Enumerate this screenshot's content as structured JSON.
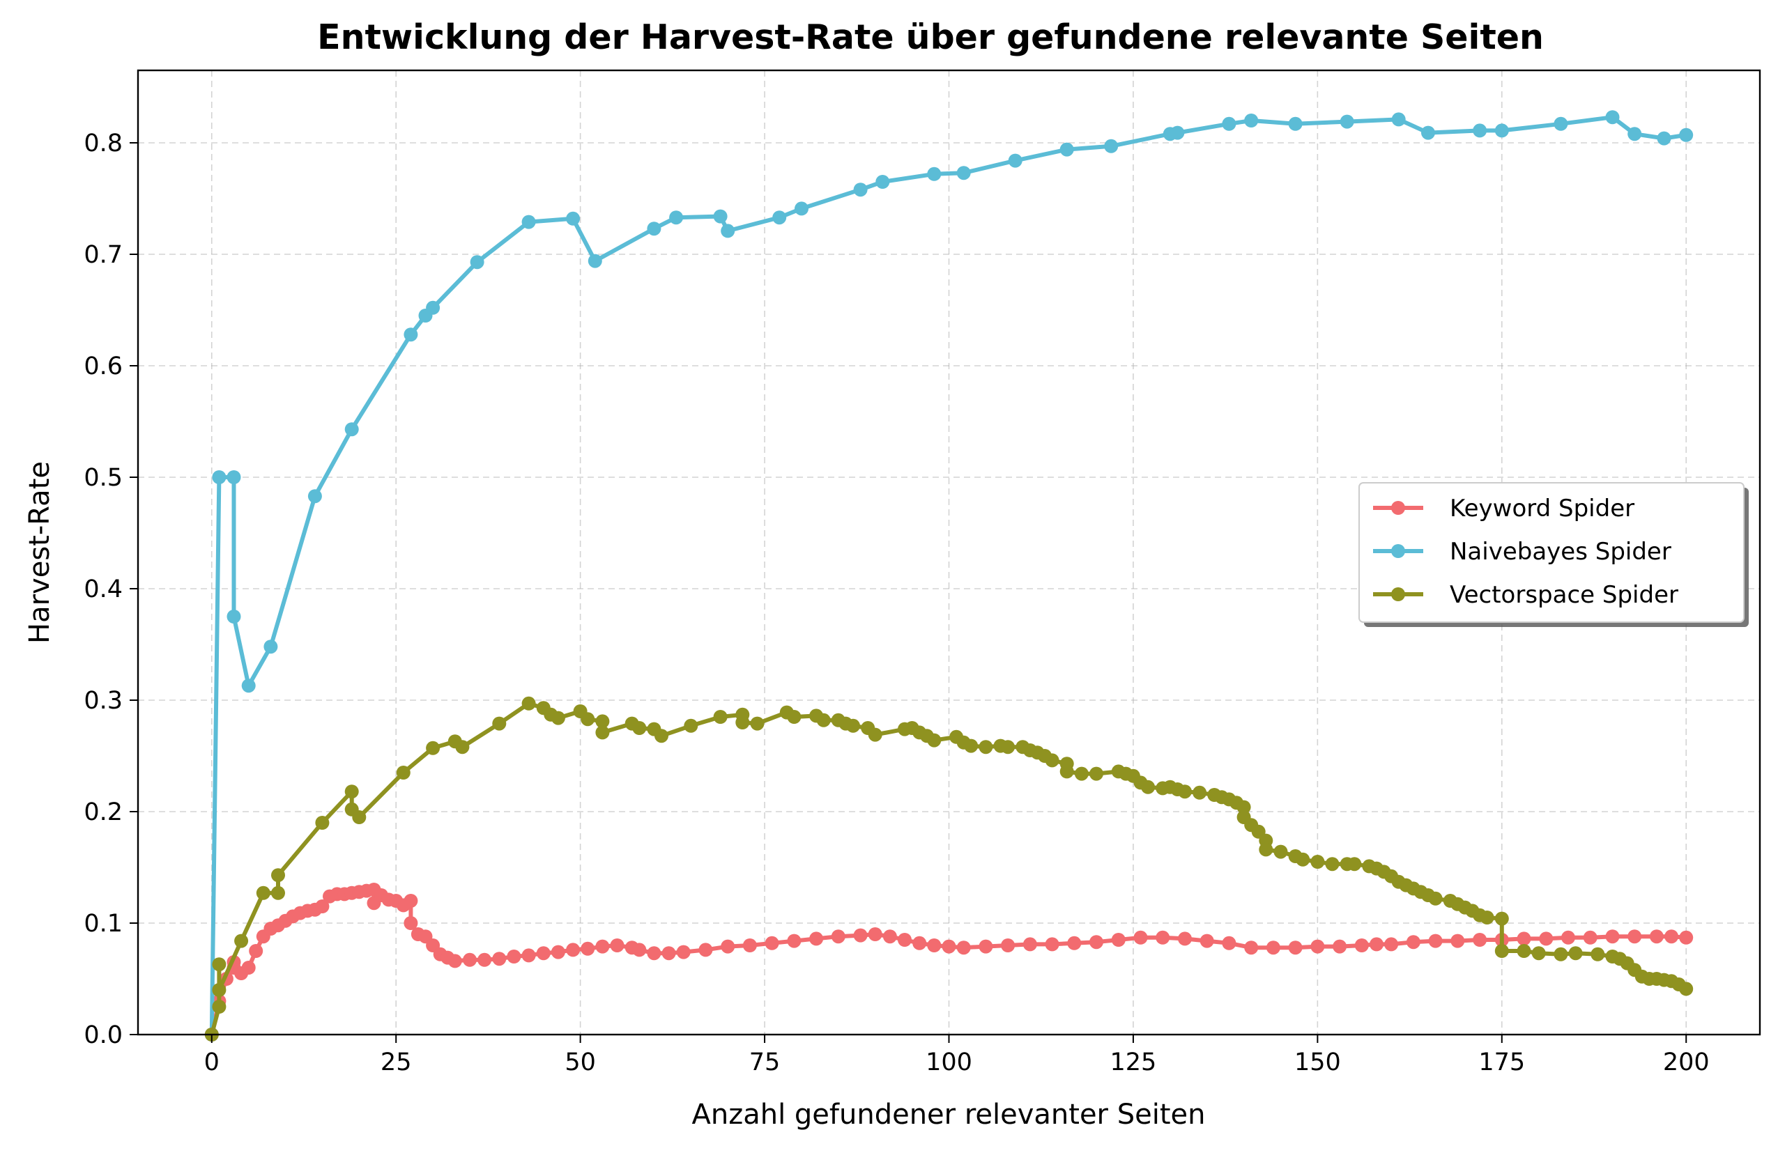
{
  "chart_data": {
    "type": "line",
    "title": "Entwicklung der Harvest-Rate über gefundene relevante Seiten",
    "xlabel": "Anzahl gefundener relevanter Seiten",
    "ylabel": "Harvest-Rate",
    "xlim": [
      -10,
      210
    ],
    "ylim": [
      0,
      0.865
    ],
    "xticks": [
      0,
      25,
      50,
      75,
      100,
      125,
      150,
      175,
      200
    ],
    "yticks": [
      0.0,
      0.1,
      0.2,
      0.3,
      0.4,
      0.5,
      0.6,
      0.7,
      0.8
    ],
    "xtick_labels": [
      "0",
      "25",
      "50",
      "75",
      "100",
      "125",
      "150",
      "175",
      "200"
    ],
    "ytick_labels": [
      "0.0",
      "0.1",
      "0.2",
      "0.3",
      "0.4",
      "0.5",
      "0.6",
      "0.7",
      "0.8"
    ],
    "grid": true,
    "legend_position": "center-right",
    "series": [
      {
        "name": "Keyword Spider",
        "color": "#f26b6f",
        "points": [
          [
            0,
            0
          ],
          [
            1,
            0.03
          ],
          [
            2,
            0.05
          ],
          [
            3,
            0.06
          ],
          [
            3,
            0.065
          ],
          [
            4,
            0.055
          ],
          [
            5,
            0.06
          ],
          [
            6,
            0.075
          ],
          [
            7,
            0.088
          ],
          [
            8,
            0.095
          ],
          [
            9,
            0.098
          ],
          [
            10,
            0.102
          ],
          [
            11,
            0.106
          ],
          [
            12,
            0.109
          ],
          [
            13,
            0.111
          ],
          [
            14,
            0.112
          ],
          [
            15,
            0.115
          ],
          [
            16,
            0.124
          ],
          [
            17,
            0.126
          ],
          [
            18,
            0.126
          ],
          [
            19,
            0.127
          ],
          [
            20,
            0.128
          ],
          [
            21,
            0.129
          ],
          [
            22,
            0.13
          ],
          [
            22,
            0.118
          ],
          [
            23,
            0.125
          ],
          [
            24,
            0.121
          ],
          [
            25,
            0.12
          ],
          [
            26,
            0.116
          ],
          [
            27,
            0.12
          ],
          [
            27,
            0.1
          ],
          [
            28,
            0.09
          ],
          [
            29,
            0.088
          ],
          [
            30,
            0.08
          ],
          [
            31,
            0.072
          ],
          [
            32,
            0.069
          ],
          [
            33,
            0.066
          ],
          [
            35,
            0.067
          ],
          [
            37,
            0.067
          ],
          [
            39,
            0.068
          ],
          [
            41,
            0.07
          ],
          [
            43,
            0.071
          ],
          [
            45,
            0.073
          ],
          [
            47,
            0.074
          ],
          [
            49,
            0.076
          ],
          [
            51,
            0.077
          ],
          [
            53,
            0.079
          ],
          [
            55,
            0.08
          ],
          [
            57,
            0.078
          ],
          [
            58,
            0.076
          ],
          [
            60,
            0.073
          ],
          [
            62,
            0.073
          ],
          [
            64,
            0.074
          ],
          [
            67,
            0.076
          ],
          [
            70,
            0.079
          ],
          [
            73,
            0.08
          ],
          [
            76,
            0.082
          ],
          [
            79,
            0.084
          ],
          [
            82,
            0.086
          ],
          [
            85,
            0.088
          ],
          [
            88,
            0.089
          ],
          [
            90,
            0.09
          ],
          [
            92,
            0.088
          ],
          [
            94,
            0.085
          ],
          [
            96,
            0.082
          ],
          [
            98,
            0.08
          ],
          [
            100,
            0.079
          ],
          [
            102,
            0.078
          ],
          [
            105,
            0.079
          ],
          [
            108,
            0.08
          ],
          [
            111,
            0.081
          ],
          [
            114,
            0.081
          ],
          [
            117,
            0.082
          ],
          [
            120,
            0.083
          ],
          [
            123,
            0.085
          ],
          [
            126,
            0.087
          ],
          [
            129,
            0.087
          ],
          [
            132,
            0.086
          ],
          [
            135,
            0.084
          ],
          [
            138,
            0.082
          ],
          [
            141,
            0.078
          ],
          [
            144,
            0.078
          ],
          [
            147,
            0.078
          ],
          [
            150,
            0.079
          ],
          [
            153,
            0.079
          ],
          [
            156,
            0.08
          ],
          [
            158,
            0.081
          ],
          [
            160,
            0.081
          ],
          [
            163,
            0.083
          ],
          [
            166,
            0.084
          ],
          [
            169,
            0.084
          ],
          [
            172,
            0.085
          ],
          [
            175,
            0.085
          ],
          [
            178,
            0.086
          ],
          [
            181,
            0.086
          ],
          [
            184,
            0.087
          ],
          [
            187,
            0.087
          ],
          [
            190,
            0.088
          ],
          [
            193,
            0.088
          ],
          [
            196,
            0.088
          ],
          [
            198,
            0.088
          ],
          [
            200,
            0.087
          ]
        ]
      },
      {
        "name": "Naivebayes Spider",
        "color": "#5bbcd6",
        "points": [
          [
            0,
            0
          ],
          [
            1,
            0.5
          ],
          [
            3,
            0.5
          ],
          [
            3,
            0.375
          ],
          [
            5,
            0.313
          ],
          [
            8,
            0.348
          ],
          [
            14,
            0.483
          ],
          [
            19,
            0.543
          ],
          [
            27,
            0.628
          ],
          [
            29,
            0.645
          ],
          [
            30,
            0.652
          ],
          [
            36,
            0.693
          ],
          [
            43,
            0.729
          ],
          [
            49,
            0.732
          ],
          [
            52,
            0.694
          ],
          [
            60,
            0.723
          ],
          [
            63,
            0.733
          ],
          [
            69,
            0.734
          ],
          [
            70,
            0.721
          ],
          [
            77,
            0.733
          ],
          [
            80,
            0.741
          ],
          [
            88,
            0.758
          ],
          [
            91,
            0.765
          ],
          [
            98,
            0.772
          ],
          [
            102,
            0.773
          ],
          [
            109,
            0.784
          ],
          [
            116,
            0.794
          ],
          [
            122,
            0.797
          ],
          [
            130,
            0.808
          ],
          [
            131,
            0.809
          ],
          [
            138,
            0.817
          ],
          [
            141,
            0.82
          ],
          [
            147,
            0.817
          ],
          [
            154,
            0.819
          ],
          [
            161,
            0.821
          ],
          [
            165,
            0.809
          ],
          [
            172,
            0.811
          ],
          [
            175,
            0.811
          ],
          [
            183,
            0.817
          ],
          [
            190,
            0.823
          ],
          [
            193,
            0.808
          ],
          [
            197,
            0.804
          ],
          [
            200,
            0.807
          ]
        ]
      },
      {
        "name": "Vectorspace Spider",
        "color": "#8f9220",
        "points": [
          [
            0,
            0
          ],
          [
            1,
            0.025
          ],
          [
            1,
            0.063
          ],
          [
            1,
            0.04
          ],
          [
            4,
            0.084
          ],
          [
            7,
            0.127
          ],
          [
            9,
            0.127
          ],
          [
            9,
            0.143
          ],
          [
            15,
            0.19
          ],
          [
            19,
            0.218
          ],
          [
            19,
            0.202
          ],
          [
            20,
            0.195
          ],
          [
            26,
            0.235
          ],
          [
            30,
            0.257
          ],
          [
            33,
            0.263
          ],
          [
            34,
            0.258
          ],
          [
            39,
            0.279
          ],
          [
            43,
            0.297
          ],
          [
            45,
            0.293
          ],
          [
            46,
            0.287
          ],
          [
            47,
            0.284
          ],
          [
            50,
            0.29
          ],
          [
            51,
            0.283
          ],
          [
            53,
            0.281
          ],
          [
            53,
            0.271
          ],
          [
            57,
            0.279
          ],
          [
            58,
            0.275
          ],
          [
            60,
            0.274
          ],
          [
            61,
            0.268
          ],
          [
            65,
            0.277
          ],
          [
            69,
            0.285
          ],
          [
            72,
            0.287
          ],
          [
            72,
            0.28
          ],
          [
            74,
            0.279
          ],
          [
            78,
            0.289
          ],
          [
            79,
            0.285
          ],
          [
            82,
            0.286
          ],
          [
            83,
            0.282
          ],
          [
            85,
            0.282
          ],
          [
            86,
            0.279
          ],
          [
            87,
            0.277
          ],
          [
            89,
            0.275
          ],
          [
            90,
            0.269
          ],
          [
            94,
            0.274
          ],
          [
            95,
            0.275
          ],
          [
            96,
            0.271
          ],
          [
            97,
            0.268
          ],
          [
            98,
            0.264
          ],
          [
            101,
            0.267
          ],
          [
            102,
            0.262
          ],
          [
            103,
            0.259
          ],
          [
            105,
            0.258
          ],
          [
            107,
            0.259
          ],
          [
            108,
            0.258
          ],
          [
            110,
            0.258
          ],
          [
            111,
            0.255
          ],
          [
            112,
            0.253
          ],
          [
            113,
            0.25
          ],
          [
            114,
            0.246
          ],
          [
            116,
            0.243
          ],
          [
            116,
            0.236
          ],
          [
            118,
            0.234
          ],
          [
            120,
            0.234
          ],
          [
            123,
            0.236
          ],
          [
            124,
            0.234
          ],
          [
            125,
            0.232
          ],
          [
            126,
            0.226
          ],
          [
            127,
            0.222
          ],
          [
            129,
            0.221
          ],
          [
            130,
            0.222
          ],
          [
            131,
            0.22
          ],
          [
            132,
            0.218
          ],
          [
            134,
            0.217
          ],
          [
            136,
            0.215
          ],
          [
            137,
            0.213
          ],
          [
            138,
            0.211
          ],
          [
            139,
            0.208
          ],
          [
            140,
            0.204
          ],
          [
            140,
            0.195
          ],
          [
            141,
            0.188
          ],
          [
            142,
            0.182
          ],
          [
            143,
            0.174
          ],
          [
            143,
            0.166
          ],
          [
            145,
            0.164
          ],
          [
            147,
            0.16
          ],
          [
            148,
            0.157
          ],
          [
            150,
            0.155
          ],
          [
            152,
            0.153
          ],
          [
            154,
            0.153
          ],
          [
            155,
            0.153
          ],
          [
            157,
            0.151
          ],
          [
            158,
            0.149
          ],
          [
            159,
            0.146
          ],
          [
            160,
            0.142
          ],
          [
            161,
            0.137
          ],
          [
            162,
            0.134
          ],
          [
            163,
            0.131
          ],
          [
            164,
            0.128
          ],
          [
            165,
            0.125
          ],
          [
            166,
            0.122
          ],
          [
            168,
            0.12
          ],
          [
            169,
            0.117
          ],
          [
            170,
            0.114
          ],
          [
            171,
            0.111
          ],
          [
            172,
            0.107
          ],
          [
            173,
            0.105
          ],
          [
            175,
            0.104
          ],
          [
            175,
            0.075
          ],
          [
            178,
            0.075
          ],
          [
            180,
            0.073
          ],
          [
            183,
            0.072
          ],
          [
            185,
            0.073
          ],
          [
            188,
            0.072
          ],
          [
            190,
            0.07
          ],
          [
            191,
            0.068
          ],
          [
            192,
            0.064
          ],
          [
            193,
            0.058
          ],
          [
            194,
            0.052
          ],
          [
            195,
            0.05
          ],
          [
            196,
            0.05
          ],
          [
            197,
            0.049
          ],
          [
            198,
            0.048
          ],
          [
            199,
            0.045
          ],
          [
            200,
            0.041
          ]
        ]
      }
    ]
  }
}
